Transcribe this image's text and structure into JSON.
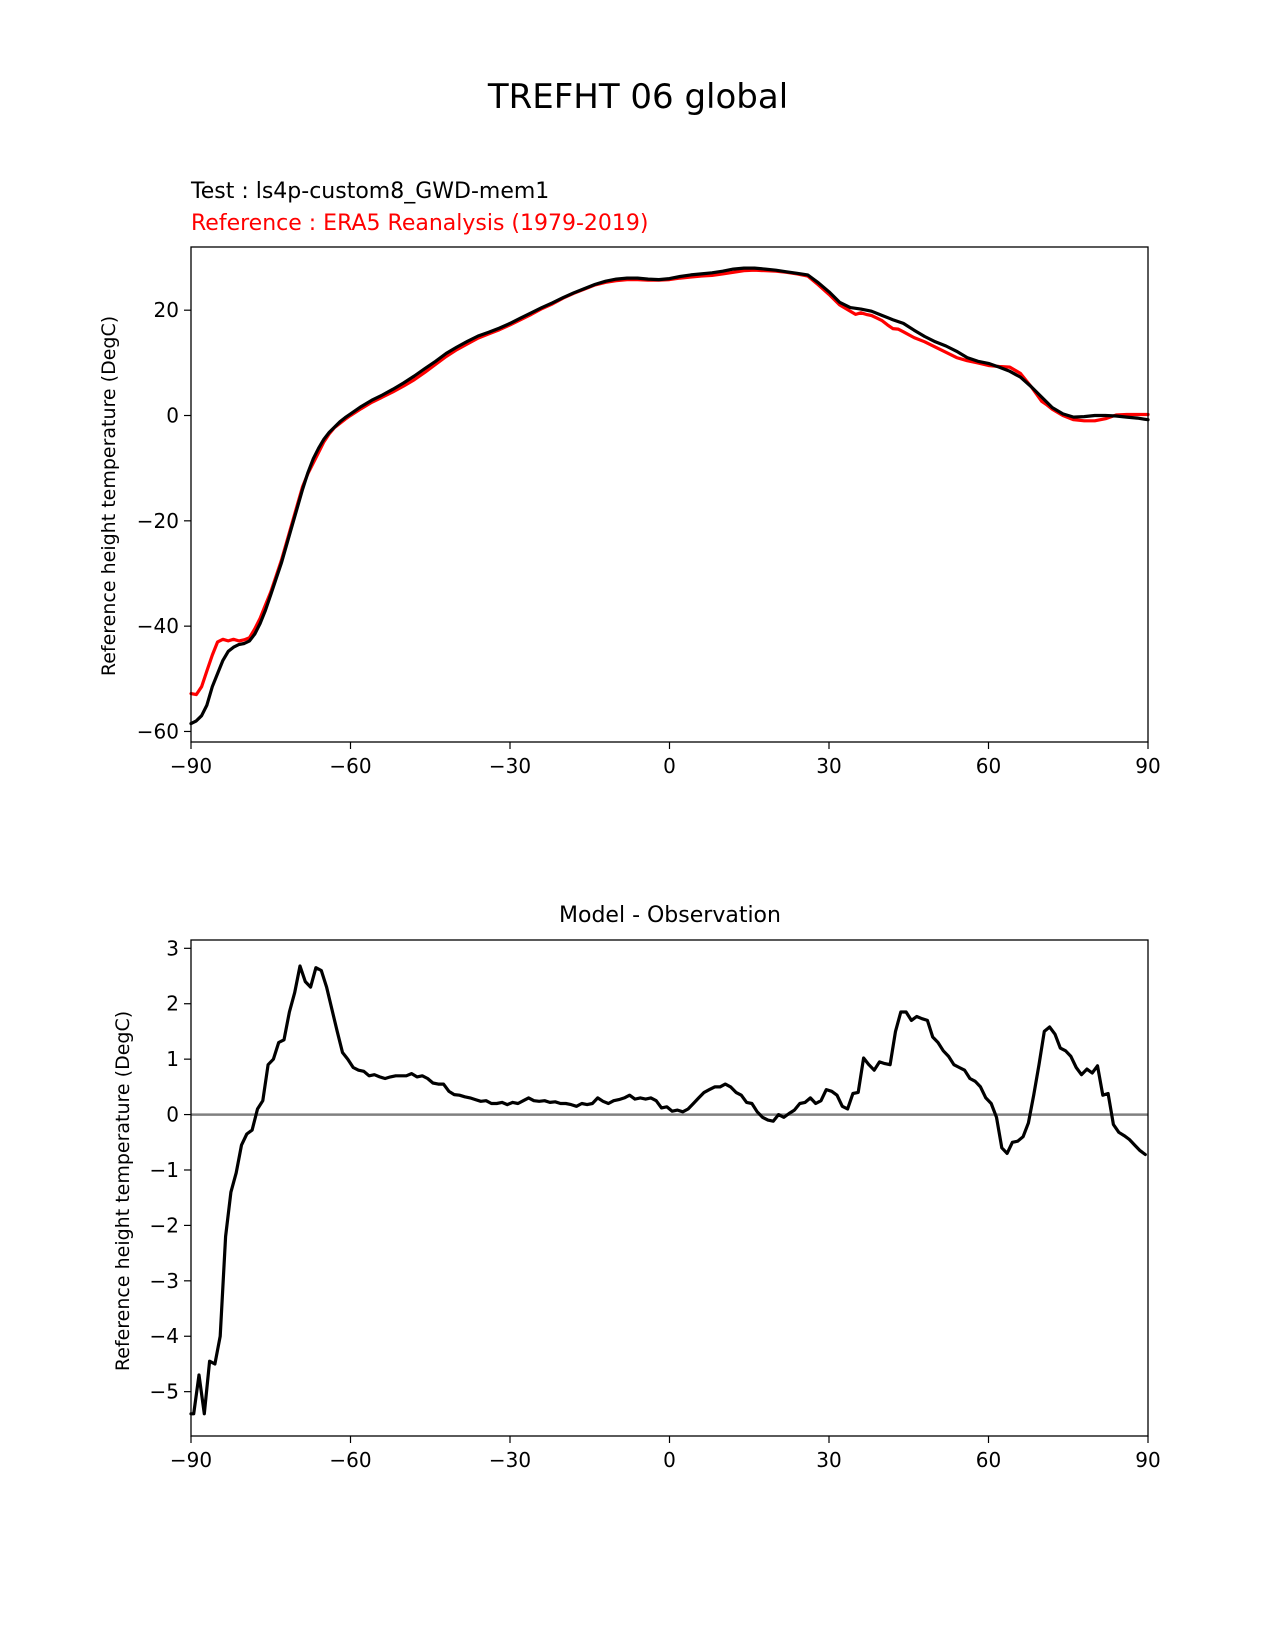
{
  "figure": {
    "suptitle": "TREFHT 06 global"
  },
  "chart_data": [
    {
      "type": "line",
      "test_label": "Test : ls4p-custom8_GWD-mem1",
      "reference_label": "Reference : ERA5 Reanalysis (1979-2019)",
      "xlabel": "",
      "ylabel": "Reference height temperature (DegC)",
      "xlim": [
        -90,
        90
      ],
      "ylim": [
        -62,
        32
      ],
      "xticks": [
        -90,
        -60,
        -30,
        0,
        30,
        60,
        90
      ],
      "yticks": [
        -60,
        -40,
        -20,
        0,
        20
      ],
      "colors": {
        "test": "#000000",
        "reference": "#ff0000"
      },
      "series": [
        {
          "name": "Test",
          "color": "#000000",
          "x": [
            -90,
            -89,
            -88,
            -87,
            -86,
            -85,
            -84,
            -83,
            -82,
            -81,
            -80,
            -79,
            -78,
            -77,
            -76,
            -75,
            -74,
            -73,
            -72,
            -71,
            -70,
            -69,
            -68,
            -67,
            -66,
            -65,
            -64,
            -63,
            -62,
            -61,
            -60,
            -58,
            -56,
            -54,
            -52,
            -50,
            -48,
            -46,
            -44,
            -42,
            -40,
            -38,
            -36,
            -34,
            -32,
            -30,
            -28,
            -26,
            -24,
            -22,
            -20,
            -18,
            -16,
            -14,
            -12,
            -10,
            -8,
            -6,
            -4,
            -2,
            0,
            2,
            4,
            6,
            8,
            10,
            12,
            14,
            16,
            18,
            20,
            22,
            24,
            26,
            28,
            30,
            32,
            34,
            36,
            38,
            40,
            42,
            44,
            46,
            48,
            50,
            52,
            54,
            56,
            58,
            60,
            62,
            64,
            66,
            68,
            70,
            72,
            74,
            76,
            78,
            80,
            82,
            84,
            86,
            88,
            90
          ],
          "values": [
            -58.5,
            -58,
            -57,
            -55,
            -51.5,
            -49,
            -46.5,
            -44.8,
            -44,
            -43.5,
            -43.3,
            -42.8,
            -41.5,
            -39.5,
            -37,
            -34,
            -31,
            -28,
            -24.5,
            -21,
            -17.5,
            -14,
            -10.8,
            -8.2,
            -6.2,
            -4.5,
            -3.2,
            -2.2,
            -1.2,
            -0.4,
            0.3,
            1.7,
            2.9,
            3.9,
            5,
            6.2,
            7.5,
            8.9,
            10.3,
            11.8,
            13,
            14.1,
            15.1,
            15.8,
            16.6,
            17.5,
            18.5,
            19.5,
            20.5,
            21.4,
            22.4,
            23.3,
            24.1,
            24.9,
            25.5,
            25.9,
            26.1,
            26.1,
            25.9,
            25.8,
            26,
            26.4,
            26.7,
            26.9,
            27.1,
            27.4,
            27.8,
            28,
            28,
            27.8,
            27.6,
            27.3,
            27,
            26.7,
            25.2,
            23.5,
            21.5,
            20.5,
            20.2,
            19.8,
            19,
            18.2,
            17.5,
            16.2,
            15,
            14,
            13.2,
            12.2,
            11,
            10.3,
            9.9,
            9.2,
            8.4,
            7.3,
            5.5,
            3.5,
            1.5,
            0.3,
            -0.3,
            -0.2,
            0,
            0,
            -0.1,
            -0.3,
            -0.5,
            -0.8
          ]
        },
        {
          "name": "Reference",
          "color": "#ff0000",
          "x": [
            -90,
            -89,
            -88,
            -87,
            -86,
            -85,
            -84,
            -83,
            -82,
            -81,
            -80,
            -79,
            -78,
            -77,
            -76,
            -75,
            -74,
            -73,
            -72,
            -71,
            -70,
            -69,
            -68,
            -67,
            -66,
            -65,
            -64,
            -63,
            -62,
            -61,
            -60,
            -58,
            -56,
            -54,
            -52,
            -50,
            -48,
            -46,
            -44,
            -42,
            -40,
            -38,
            -36,
            -34,
            -32,
            -30,
            -28,
            -26,
            -24,
            -22,
            -20,
            -18,
            -16,
            -14,
            -12,
            -10,
            -8,
            -6,
            -4,
            -2,
            0,
            2,
            4,
            6,
            8,
            10,
            12,
            14,
            16,
            18,
            20,
            22,
            24,
            26,
            28,
            30,
            32,
            34,
            35,
            36,
            37,
            38,
            39,
            40,
            41,
            42,
            43,
            44,
            46,
            48,
            50,
            52,
            54,
            56,
            58,
            60,
            62,
            64,
            66,
            68,
            70,
            71,
            72,
            74,
            76,
            78,
            80,
            82,
            84,
            86,
            88,
            90
          ],
          "values": [
            -52.8,
            -53,
            -51.5,
            -48.5,
            -45.5,
            -43,
            -42.5,
            -42.8,
            -42.5,
            -42.8,
            -42.6,
            -42.2,
            -40.5,
            -38.5,
            -36,
            -33.5,
            -30.5,
            -27.5,
            -24,
            -20.5,
            -17,
            -13.5,
            -11,
            -9,
            -7,
            -5,
            -3.5,
            -2.3,
            -1.5,
            -0.7,
            0,
            1.3,
            2.5,
            3.5,
            4.5,
            5.6,
            6.8,
            8.2,
            9.7,
            11.2,
            12.5,
            13.6,
            14.7,
            15.5,
            16.3,
            17.2,
            18.2,
            19.2,
            20.3,
            21.2,
            22.3,
            23.2,
            24,
            24.8,
            25.3,
            25.6,
            25.8,
            25.8,
            25.7,
            25.7,
            25.8,
            26.1,
            26.3,
            26.5,
            26.6,
            26.9,
            27.2,
            27.5,
            27.6,
            27.5,
            27.4,
            27.2,
            26.9,
            26.5,
            24.8,
            23,
            21,
            19.8,
            19.2,
            19.5,
            19.2,
            19,
            18.5,
            18,
            17.2,
            16.5,
            16.4,
            15.9,
            14.8,
            14,
            13,
            12,
            11,
            10.4,
            10,
            9.5,
            9.3,
            9.2,
            8,
            5.5,
            2.7,
            2,
            1.2,
            0,
            -0.8,
            -1,
            -1,
            -0.6,
            0.1,
            0.2,
            0.2,
            0.2
          ]
        }
      ]
    },
    {
      "type": "line",
      "title": "Model - Observation",
      "xlabel": "",
      "ylabel": "Reference height temperature (DegC)",
      "xlim": [
        -90,
        90
      ],
      "ylim": [
        -5.8,
        3.15
      ],
      "xticks": [
        -90,
        -60,
        -30,
        0,
        30,
        60,
        90
      ],
      "yticks": [
        -5,
        -4,
        -3,
        -2,
        -1,
        0,
        1,
        2,
        3
      ],
      "zero_line_color": "#808080",
      "series": [
        {
          "name": "Model - Observation",
          "color": "#000000",
          "x": [
            -90,
            -89.5,
            -88.5,
            -87.5,
            -86.5,
            -85.5,
            -84.5,
            -83.5,
            -82.5,
            -81.5,
            -80.5,
            -79.5,
            -78.5,
            -77.5,
            -76.5,
            -75.5,
            -74.5,
            -73.5,
            -72.5,
            -71.5,
            -70.5,
            -69.5,
            -68.5,
            -67.5,
            -66.5,
            -65.5,
            -64.5,
            -63.5,
            -62.5,
            -61.5,
            -60.5,
            -59.5,
            -58.5,
            -57.5,
            -56.5,
            -55.5,
            -54.5,
            -53.5,
            -52.5,
            -51.5,
            -50.5,
            -49.5,
            -48.5,
            -47.5,
            -46.5,
            -45.5,
            -44.5,
            -43.5,
            -42.5,
            -41.5,
            -40.5,
            -39.5,
            -38.5,
            -37.5,
            -36.5,
            -35.5,
            -34.5,
            -33.5,
            -32.5,
            -31.5,
            -30.5,
            -29.5,
            -28.5,
            -27.5,
            -26.5,
            -25.5,
            -24.5,
            -23.5,
            -22.5,
            -21.5,
            -20.5,
            -19.5,
            -18.5,
            -17.5,
            -16.5,
            -15.5,
            -14.5,
            -13.5,
            -12.5,
            -11.5,
            -10.5,
            -9.5,
            -8.5,
            -7.5,
            -6.5,
            -5.5,
            -4.5,
            -3.5,
            -2.5,
            -1.5,
            -0.5,
            0.5,
            1.5,
            2.5,
            3.5,
            4.5,
            5.5,
            6.5,
            7.5,
            8.5,
            9.5,
            10.5,
            11.5,
            12.5,
            13.5,
            14.5,
            15.5,
            16.5,
            17.5,
            18.5,
            19.5,
            20.5,
            21.5,
            22.5,
            23.5,
            24.5,
            25.5,
            26.5,
            27.5,
            28.5,
            29.5,
            30.5,
            31.5,
            32.5,
            33.5,
            34.5,
            35.5,
            36.5,
            37.5,
            38.5,
            39.5,
            40.5,
            41.5,
            42.5,
            43.5,
            44.5,
            45.5,
            46.5,
            47.5,
            48.5,
            49.5,
            50.5,
            51.5,
            52.5,
            53.5,
            54.5,
            55.5,
            56.5,
            57.5,
            58.5,
            59.5,
            60.5,
            61.5,
            62.5,
            63.5,
            64.5,
            65.5,
            66.5,
            67.5,
            68.5,
            69.5,
            70.5,
            71.5,
            72.5,
            73.5,
            74.5,
            75.5,
            76.5,
            77.5,
            78.5,
            79.5,
            80.5,
            81.5,
            82.5,
            83.5,
            84.5,
            85.5,
            86.5,
            87.5,
            88.5,
            89.5
          ],
          "values": [
            -5.4,
            -5.4,
            -4.7,
            -5.4,
            -4.45,
            -4.5,
            -4,
            -2.2,
            -1.4,
            -1.05,
            -0.55,
            -0.35,
            -0.28,
            0.1,
            0.25,
            0.9,
            1,
            1.3,
            1.35,
            1.85,
            2.2,
            2.68,
            2.4,
            2.3,
            2.65,
            2.6,
            2.3,
            1.9,
            1.5,
            1.12,
            1,
            0.85,
            0.8,
            0.78,
            0.7,
            0.72,
            0.68,
            0.65,
            0.68,
            0.7,
            0.7,
            0.7,
            0.74,
            0.68,
            0.7,
            0.65,
            0.57,
            0.55,
            0.55,
            0.42,
            0.36,
            0.35,
            0.32,
            0.3,
            0.27,
            0.24,
            0.25,
            0.2,
            0.2,
            0.22,
            0.18,
            0.22,
            0.2,
            0.25,
            0.3,
            0.25,
            0.24,
            0.25,
            0.22,
            0.23,
            0.2,
            0.2,
            0.18,
            0.15,
            0.2,
            0.18,
            0.2,
            0.3,
            0.24,
            0.2,
            0.25,
            0.27,
            0.3,
            0.35,
            0.28,
            0.3,
            0.28,
            0.3,
            0.25,
            0.12,
            0.14,
            0.06,
            0.08,
            0.05,
            0.1,
            0.2,
            0.3,
            0.4,
            0.45,
            0.5,
            0.5,
            0.55,
            0.5,
            0.4,
            0.35,
            0.22,
            0.2,
            0.05,
            -0.05,
            -0.1,
            -0.12,
            0,
            -0.05,
            0.02,
            0.08,
            0.2,
            0.22,
            0.3,
            0.2,
            0.25,
            0.45,
            0.42,
            0.35,
            0.15,
            0.1,
            0.38,
            0.4,
            1.02,
            0.9,
            0.8,
            0.95,
            0.92,
            0.9,
            1.5,
            1.85,
            1.85,
            1.7,
            1.77,
            1.73,
            1.7,
            1.4,
            1.3,
            1.15,
            1.05,
            0.9,
            0.85,
            0.8,
            0.65,
            0.6,
            0.5,
            0.3,
            0.2,
            -0.05,
            -0.6,
            -0.7,
            -0.5,
            -0.48,
            -0.4,
            -0.15,
            0.35,
            0.9,
            1.5,
            1.58,
            1.45,
            1.2,
            1.15,
            1.05,
            0.85,
            0.72,
            0.82,
            0.75,
            0.88,
            0.35,
            0.38,
            -0.18,
            -0.32,
            -0.38,
            -0.45,
            -0.55,
            -0.65,
            -0.72
          ]
        }
      ]
    }
  ]
}
